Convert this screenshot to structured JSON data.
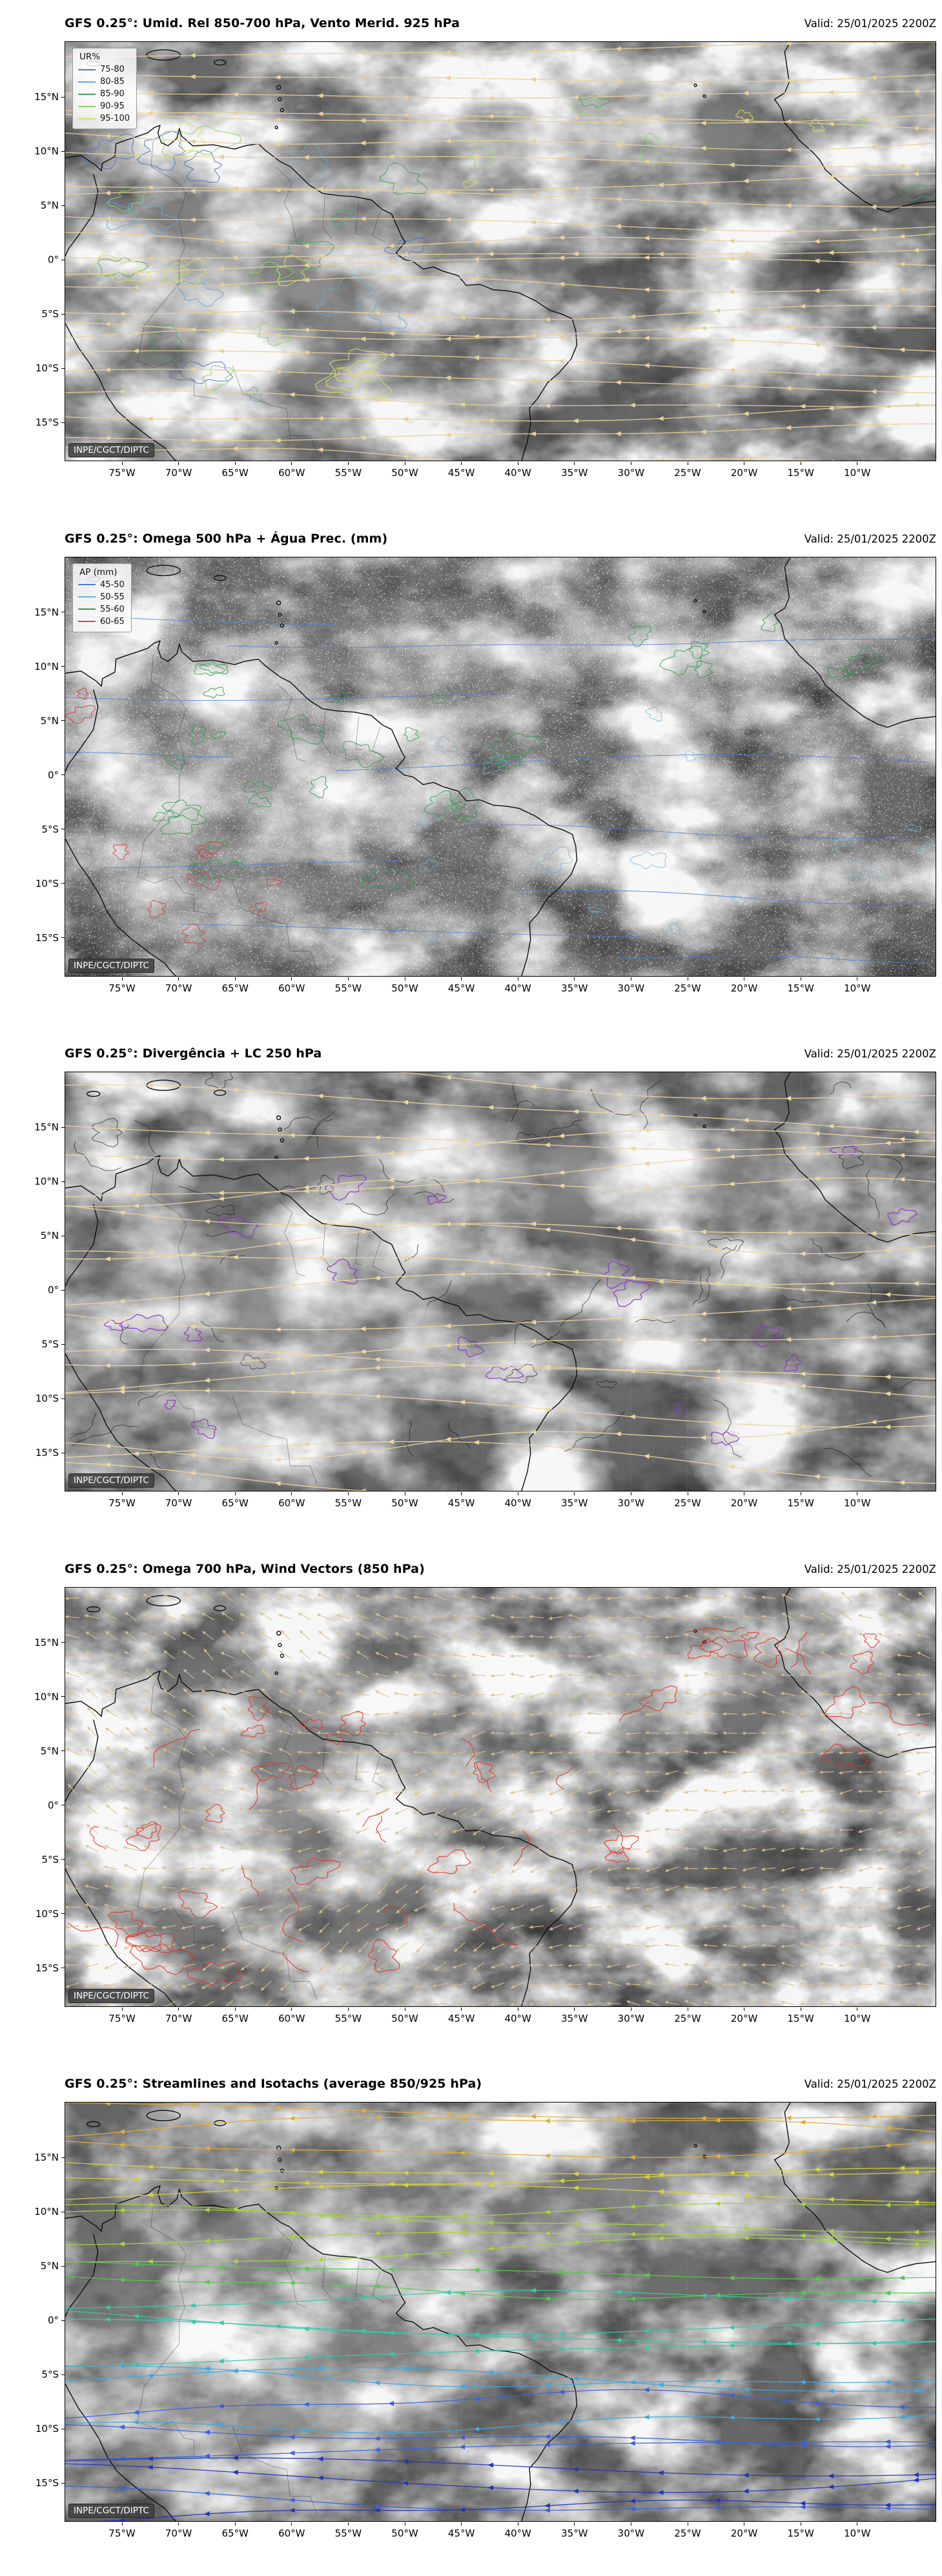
{
  "watermark": "INPE/CGCT/DIPTC",
  "axes": {
    "lon_ticks": [
      "75°W",
      "70°W",
      "65°W",
      "60°W",
      "55°W",
      "50°W",
      "45°W",
      "40°W",
      "35°W",
      "30°W",
      "25°W",
      "20°W",
      "15°W",
      "10°W"
    ],
    "lat_ticks": [
      "15°N",
      "10°N",
      "5°N",
      "0°",
      "5°S",
      "10°S",
      "15°S"
    ]
  },
  "chart_data": [
    {
      "type": "map",
      "title": "GFS 0.25°: Umid. Rel 850-700 hPa, Vento Merid. 925 hPa",
      "valid": "Valid: 25/01/2025 2200Z",
      "x_ticks": [
        "75°W",
        "70°W",
        "65°W",
        "60°W",
        "55°W",
        "50°W",
        "45°W",
        "40°W",
        "35°W",
        "30°W",
        "25°W",
        "20°W",
        "15°W",
        "10°W"
      ],
      "y_ticks": [
        "15°N",
        "10°N",
        "5°N",
        "0°",
        "5°S",
        "10°S",
        "15°S"
      ],
      "legend": {
        "title": "UR%",
        "entries": [
          {
            "label": "75-80",
            "color": "#4f74c9"
          },
          {
            "label": "80-85",
            "color": "#5fa8dc"
          },
          {
            "label": "85-90",
            "color": "#3fa45c"
          },
          {
            "label": "90-95",
            "color": "#8fd069"
          },
          {
            "label": "95-100",
            "color": "#d7e35c"
          }
        ]
      },
      "annotation": "INPE/CGCT/DIPTC",
      "layers": [
        "grayscale satellite cloud imagery",
        "relative humidity 850-700 hPa contours over land",
        "tan 925 hPa meridional wind streamlines with arrowheads"
      ],
      "style": {
        "mode": "rh",
        "seed": 11,
        "fx": 0.0062,
        "fy": 0.0095,
        "g": 1.6,
        "b": -1.95,
        "stream": "#e8d09a"
      }
    },
    {
      "type": "map",
      "title": "GFS 0.25°: Omega 500 hPa + Água Prec. (mm)",
      "valid": "Valid: 25/01/2025 2200Z",
      "x_ticks": [
        "75°W",
        "70°W",
        "65°W",
        "60°W",
        "55°W",
        "50°W",
        "45°W",
        "40°W",
        "35°W",
        "30°W",
        "25°W",
        "20°W",
        "15°W",
        "10°W"
      ],
      "y_ticks": [
        "15°N",
        "10°N",
        "5°N",
        "0°",
        "5°S",
        "10°S",
        "15°S"
      ],
      "legend": {
        "title": "AP (mm)",
        "entries": [
          {
            "label": "45-50",
            "color": "#4d7fd2"
          },
          {
            "label": "50-55",
            "color": "#6fb3d2"
          },
          {
            "label": "55-60",
            "color": "#2f9e4f"
          },
          {
            "label": "60-65",
            "color": "#d84040"
          }
        ]
      },
      "annotation": "INPE/CGCT/DIPTC",
      "layers": [
        "grayscale satellite cloud imagery",
        "white omega 500 hPa speckle contours",
        "precipitable water contours (blue/green/red)"
      ],
      "style": {
        "mode": "omega-pw",
        "seed": 23,
        "fx": 0.0058,
        "fy": 0.009,
        "g": 1.55,
        "b": -1.95,
        "speckle": true
      }
    },
    {
      "type": "map",
      "title": "GFS 0.25°: Divergência + LC 250 hPa",
      "valid": "Valid: 25/01/2025 2200Z",
      "x_ticks": [
        "75°W",
        "70°W",
        "65°W",
        "60°W",
        "55°W",
        "50°W",
        "45°W",
        "40°W",
        "35°W",
        "30°W",
        "25°W",
        "20°W",
        "15°W",
        "10°W"
      ],
      "y_ticks": [
        "15°N",
        "10°N",
        "5°N",
        "0°",
        "5°S",
        "10°S",
        "15°S"
      ],
      "legend": null,
      "annotation": "INPE/CGCT/DIPTC",
      "layers": [
        "grayscale satellite cloud imagery",
        "tan 250 hPa streamlines with arrowheads",
        "purple divergence contours",
        "thin black contours"
      ],
      "style": {
        "mode": "div",
        "seed": 5,
        "fx": 0.006,
        "fy": 0.0095,
        "g": 1.5,
        "b": -1.9,
        "stream": "#ecd6a2",
        "div": "#8a30c8",
        "conv": "#1a1a1a"
      }
    },
    {
      "type": "map",
      "title": "GFS 0.25°: Omega 700 hPa, Wind Vectors (850 hPa)",
      "valid": "Valid: 25/01/2025 2200Z",
      "x_ticks": [
        "75°W",
        "70°W",
        "65°W",
        "60°W",
        "55°W",
        "50°W",
        "45°W",
        "40°W",
        "35°W",
        "30°W",
        "25°W",
        "20°W",
        "15°W",
        "10°W"
      ],
      "y_ticks": [
        "15°N",
        "10°N",
        "5°N",
        "0°",
        "5°S",
        "10°S",
        "15°S"
      ],
      "legend": null,
      "annotation": "INPE/CGCT/DIPTC",
      "layers": [
        "grayscale satellite cloud imagery",
        "tan 850 hPa wind vector arrow grid",
        "red omega 700 hPa contours"
      ],
      "style": {
        "mode": "vectors",
        "seed": 17,
        "fx": 0.007,
        "fy": 0.0105,
        "g": 1.7,
        "b": -2.05,
        "vector": "#d9c28e",
        "omega": "#e23028"
      }
    },
    {
      "type": "map",
      "title": "GFS 0.25°: Streamlines and Isotachs (average 850/925 hPa)",
      "valid": "Valid: 25/01/2025 2200Z",
      "x_ticks": [
        "75°W",
        "70°W",
        "65°W",
        "60°W",
        "55°W",
        "50°W",
        "45°W",
        "40°W",
        "35°W",
        "30°W",
        "25°W",
        "20°W",
        "15°W",
        "10°W"
      ],
      "y_ticks": [
        "15°N",
        "10°N",
        "5°N",
        "0°",
        "5°S",
        "10°S",
        "15°S"
      ],
      "legend": null,
      "annotation": "INPE/CGCT/DIPTC",
      "layers": [
        "grayscale satellite cloud imagery",
        "streamlines colored by isotach speed (yellow north, green/cyan tropics, blue south)"
      ],
      "style": {
        "mode": "isotach",
        "seed": 29,
        "fx": 0.006,
        "fy": 0.0095,
        "g": 1.55,
        "b": -2.0,
        "palette": [
          "#dfae3c",
          "#d9d23c",
          "#a6d43e",
          "#55c94e",
          "#35c9a8",
          "#3fa8df",
          "#3a62dd",
          "#2336b8"
        ]
      }
    }
  ]
}
